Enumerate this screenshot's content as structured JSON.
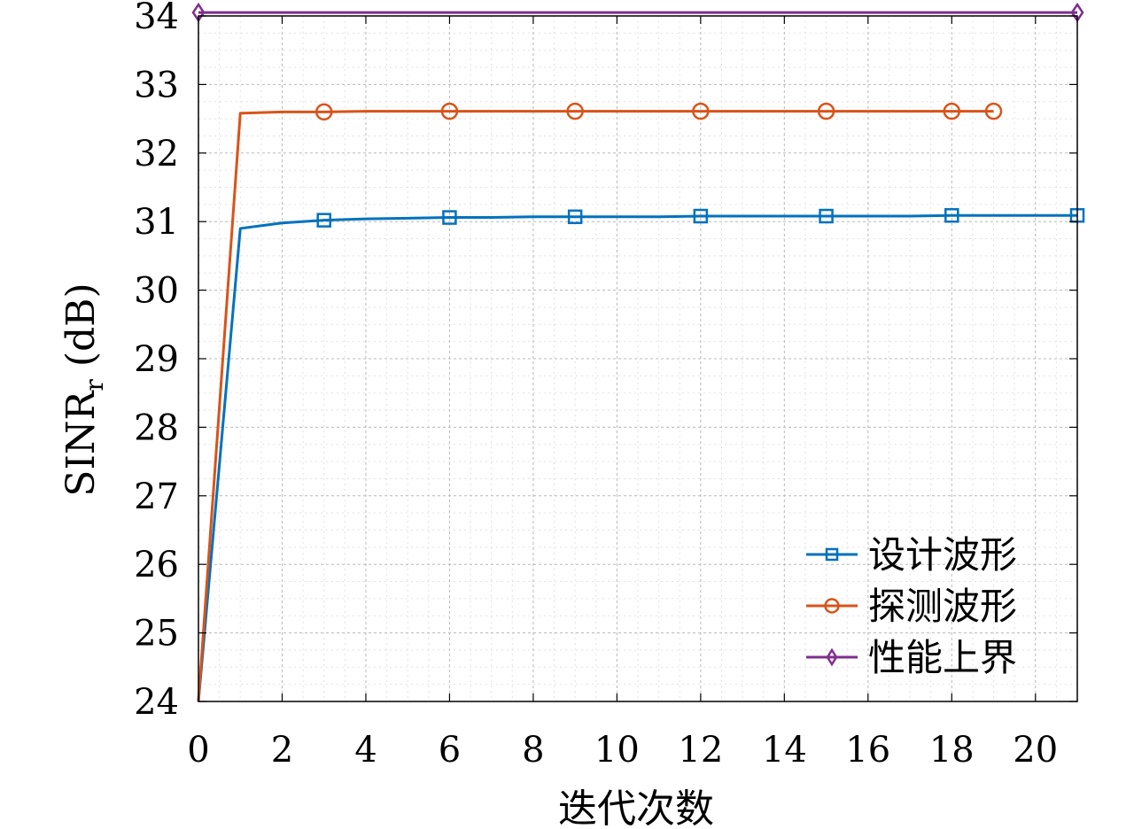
{
  "chart_data": {
    "type": "line",
    "xlabel": "迭代次数",
    "ylabel_main": "SINR",
    "ylabel_sub": "r",
    "ylabel_unit": " (dB)",
    "xlim": [
      0,
      21
    ],
    "ylim": [
      24,
      34
    ],
    "xticks": [
      0,
      2,
      4,
      6,
      8,
      10,
      12,
      14,
      16,
      18,
      20
    ],
    "yticks": [
      24,
      25,
      26,
      27,
      28,
      29,
      30,
      31,
      32,
      33,
      34
    ],
    "grid": true,
    "legend_position": "bottom-right",
    "series": [
      {
        "name": "设计波形",
        "color": "#0072BD",
        "marker": "square",
        "x": [
          0,
          1,
          2,
          3,
          4,
          5,
          6,
          7,
          8,
          9,
          10,
          11,
          12,
          13,
          14,
          15,
          16,
          17,
          18,
          19,
          20,
          21
        ],
        "y": [
          24.0,
          30.9,
          30.98,
          31.02,
          31.04,
          31.05,
          31.06,
          31.06,
          31.07,
          31.07,
          31.07,
          31.07,
          31.08,
          31.08,
          31.08,
          31.08,
          31.08,
          31.08,
          31.09,
          31.09,
          31.09,
          31.09
        ],
        "marker_x": [
          3,
          6,
          9,
          12,
          15,
          18,
          21
        ]
      },
      {
        "name": "探测波形",
        "color": "#D95319",
        "marker": "circle",
        "x": [
          0,
          1,
          2,
          3,
          4,
          5,
          6,
          7,
          8,
          9,
          10,
          11,
          12,
          13,
          14,
          15,
          16,
          17,
          18,
          19
        ],
        "y": [
          24.0,
          32.58,
          32.6,
          32.6,
          32.61,
          32.61,
          32.61,
          32.61,
          32.61,
          32.61,
          32.61,
          32.61,
          32.61,
          32.61,
          32.61,
          32.61,
          32.61,
          32.61,
          32.61,
          32.61
        ],
        "marker_x": [
          3,
          6,
          9,
          12,
          15,
          18,
          19
        ]
      },
      {
        "name": "性能上界",
        "color": "#7E2F8E",
        "marker": "diamond",
        "x": [
          0,
          21
        ],
        "y": [
          34.05,
          34.05
        ],
        "marker_x": [
          0,
          21
        ]
      }
    ]
  }
}
